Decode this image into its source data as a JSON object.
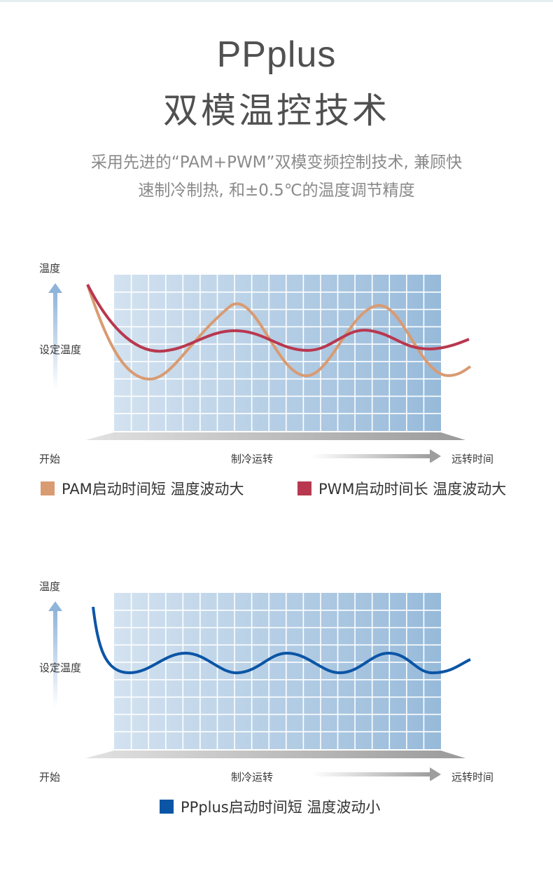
{
  "title_en": "PPplus",
  "title_cn": "双模温控技术",
  "subtitle_line1": "采用先进的“PAM+PWM”双模变频控制技术, 兼顾快",
  "subtitle_line2": "速制冷制热, 和±0.5℃的温度调节精度",
  "colors": {
    "pam": "#d99b72",
    "pwm": "#b8384f",
    "ppplus": "#0b55a6",
    "grid_light": "#d1e1ef",
    "grid_dark": "#98bbdb"
  },
  "chart1": {
    "y_label": "温度",
    "set_label": "设定温度",
    "x_start": "开始",
    "x_mid": "制冷运转",
    "x_end": "远转时间",
    "legend": [
      {
        "label": "PAM启动时间短 温度波动大",
        "color": "#d99b72"
      },
      {
        "label": "PWM启动时间长 温度波动大",
        "color": "#b8384f"
      }
    ]
  },
  "chart2": {
    "y_label": "温度",
    "set_label": "设定温度",
    "x_start": "开始",
    "x_mid": "制冷运转",
    "x_end": "远转时间",
    "legend": [
      {
        "label": "PPplus启动时间短 温度波动小",
        "color": "#0b55a6"
      }
    ]
  }
}
